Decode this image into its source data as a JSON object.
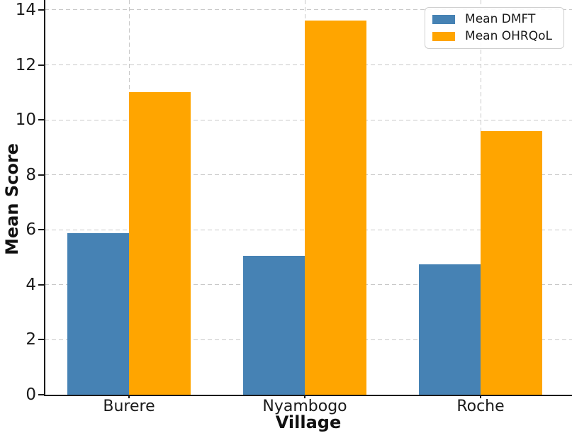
{
  "chart_data": {
    "type": "bar",
    "title": "",
    "xlabel": "Village",
    "ylabel": "Mean Score",
    "categories": [
      "Burere",
      "Nyambogo",
      "Roche"
    ],
    "series": [
      {
        "name": "Mean DMFT",
        "color": "#4682B4",
        "values": [
          5.87,
          5.05,
          4.75
        ]
      },
      {
        "name": "Mean OHRQoL",
        "color": "#FFA500",
        "values": [
          11.0,
          13.6,
          9.6
        ]
      }
    ],
    "ylim": [
      0,
      14
    ],
    "yticks": [
      0,
      2,
      4,
      6,
      8,
      10,
      12,
      14
    ],
    "grid": true,
    "grid_color": "#c9c9c9",
    "axis_color": "#1a1a1a",
    "legend_position": "top-right"
  }
}
